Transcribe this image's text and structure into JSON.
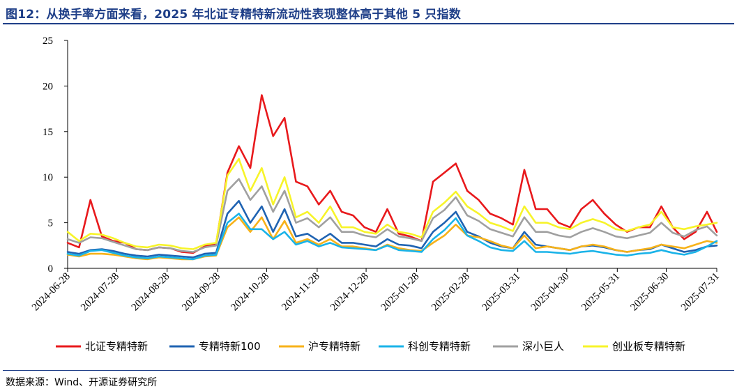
{
  "title": "图12：从换手率方面来看，2025 年北证专精特新流动性表现整体高于其他 5 只指数",
  "source": "数据来源：Wind、开源证券研究所",
  "chart_data": {
    "type": "line",
    "title": "图12：从换手率方面来看，2025 年北证专精特新流动性表现整体高于其他 5 只指数",
    "xlabel": "",
    "ylabel": "",
    "ylim": [
      0,
      25
    ],
    "yticks": [
      "0",
      "5",
      "10",
      "15",
      "20",
      "25"
    ],
    "x_tick_labels": [
      "2024-06-28",
      "2024-07-28",
      "2024-08-28",
      "2024-09-28",
      "2024-10-28",
      "2024-11-28",
      "2024-12-28",
      "2025-01-28",
      "2025-02-28",
      "2025-03-31",
      "2025-04-30",
      "2025-05-31",
      "2025-06-30",
      "2025-07-31"
    ],
    "grid": false,
    "legend_position": "bottom",
    "x": [
      "2024-06-28",
      "2024-07-05",
      "2024-07-12",
      "2024-07-19",
      "2024-07-26",
      "2024-08-02",
      "2024-08-09",
      "2024-08-16",
      "2024-08-23",
      "2024-08-30",
      "2024-09-06",
      "2024-09-13",
      "2024-09-20",
      "2024-09-27",
      "2024-10-04",
      "2024-10-11",
      "2024-10-18",
      "2024-10-25",
      "2024-11-01",
      "2024-11-08",
      "2024-11-15",
      "2024-11-22",
      "2024-11-29",
      "2024-12-06",
      "2024-12-13",
      "2024-12-20",
      "2024-12-27",
      "2025-01-03",
      "2025-01-10",
      "2025-01-17",
      "2025-01-24",
      "2025-01-31",
      "2025-02-07",
      "2025-02-14",
      "2025-02-21",
      "2025-02-28",
      "2025-03-07",
      "2025-03-14",
      "2025-03-21",
      "2025-03-28",
      "2025-04-04",
      "2025-04-11",
      "2025-04-18",
      "2025-04-25",
      "2025-05-02",
      "2025-05-09",
      "2025-05-16",
      "2025-05-23",
      "2025-05-30",
      "2025-06-06",
      "2025-06-13",
      "2025-06-20",
      "2025-06-27",
      "2025-07-04",
      "2025-07-11",
      "2025-07-18",
      "2025-07-25",
      "2025-07-31"
    ],
    "series": [
      {
        "name": "北证专精特新",
        "color": "#e8191c",
        "values": [
          2.8,
          2.3,
          7.5,
          3.5,
          3.0,
          2.8,
          2.1,
          2.0,
          2.3,
          2.2,
          1.8,
          1.7,
          2.4,
          2.7,
          10.5,
          13.4,
          11.0,
          19.0,
          14.5,
          16.5,
          9.5,
          9.0,
          7.0,
          8.5,
          6.2,
          5.8,
          4.5,
          4.0,
          6.5,
          3.8,
          3.5,
          3.0,
          9.5,
          10.5,
          11.5,
          8.5,
          7.5,
          6.0,
          5.5,
          4.8,
          10.8,
          6.5,
          6.5,
          5.0,
          4.5,
          6.5,
          7.5,
          6.0,
          4.8,
          4.0,
          4.5,
          4.5,
          6.8,
          4.5,
          3.2,
          4.0,
          6.2,
          4.0
        ]
      },
      {
        "name": "专精特新100",
        "color": "#1f63b2",
        "values": [
          1.8,
          1.6,
          2.0,
          2.1,
          1.9,
          1.6,
          1.4,
          1.3,
          1.5,
          1.4,
          1.3,
          1.2,
          1.6,
          1.7,
          6.0,
          7.4,
          5.0,
          6.8,
          4.0,
          6.5,
          3.5,
          3.8,
          3.0,
          3.8,
          2.8,
          2.8,
          2.6,
          2.4,
          3.2,
          2.6,
          2.5,
          2.2,
          4.0,
          5.0,
          6.2,
          4.0,
          3.5,
          2.8,
          2.4,
          2.2,
          4.0,
          2.6,
          2.4,
          2.2,
          2.0,
          2.4,
          2.5,
          2.3,
          2.0,
          1.8,
          2.0,
          2.1,
          2.6,
          2.2,
          1.8,
          2.0,
          2.4,
          2.5
        ]
      },
      {
        "name": "沪专精特新",
        "color": "#f7b219",
        "values": [
          1.5,
          1.3,
          1.6,
          1.6,
          1.5,
          1.3,
          1.1,
          1.0,
          1.2,
          1.1,
          1.0,
          1.0,
          1.3,
          1.4,
          4.5,
          5.6,
          4.0,
          5.6,
          3.2,
          5.2,
          2.8,
          3.2,
          2.6,
          3.2,
          2.4,
          2.4,
          2.2,
          2.0,
          2.6,
          2.2,
          2.0,
          1.9,
          2.8,
          3.6,
          4.8,
          3.6,
          3.4,
          3.0,
          2.5,
          2.2,
          3.6,
          2.2,
          2.4,
          2.2,
          2.0,
          2.4,
          2.6,
          2.4,
          2.0,
          1.8,
          2.0,
          2.2,
          2.6,
          2.4,
          2.2,
          2.6,
          3.0,
          2.8
        ]
      },
      {
        "name": "科创专精特新",
        "color": "#1ab3e8",
        "values": [
          1.6,
          1.4,
          1.9,
          2.0,
          1.7,
          1.4,
          1.2,
          1.1,
          1.3,
          1.2,
          1.1,
          1.0,
          1.4,
          1.5,
          5.0,
          6.0,
          4.3,
          4.3,
          3.2,
          4.0,
          2.6,
          3.0,
          2.4,
          2.8,
          2.3,
          2.2,
          2.1,
          2.0,
          2.5,
          2.0,
          1.9,
          1.8,
          3.2,
          4.2,
          5.5,
          3.6,
          3.0,
          2.3,
          2.0,
          1.9,
          3.0,
          1.8,
          1.8,
          1.7,
          1.6,
          1.8,
          1.9,
          1.7,
          1.5,
          1.4,
          1.6,
          1.7,
          2.0,
          1.7,
          1.5,
          1.8,
          2.4,
          3.0
        ]
      },
      {
        "name": "深小巨人",
        "color": "#a0a0a0",
        "values": [
          3.2,
          2.8,
          3.4,
          3.3,
          2.9,
          2.5,
          2.1,
          2.0,
          2.3,
          2.2,
          1.9,
          1.8,
          2.3,
          2.5,
          8.5,
          9.8,
          7.5,
          9.0,
          6.2,
          8.5,
          5.0,
          5.5,
          4.5,
          5.6,
          4.0,
          4.0,
          3.6,
          3.4,
          4.3,
          3.5,
          3.3,
          3.0,
          5.5,
          6.4,
          7.8,
          5.8,
          5.2,
          4.3,
          3.9,
          3.5,
          5.6,
          4.0,
          4.0,
          3.6,
          3.4,
          4.0,
          4.4,
          4.0,
          3.5,
          3.3,
          3.6,
          3.9,
          5.0,
          3.9,
          3.5,
          4.2,
          4.6,
          3.6
        ]
      },
      {
        "name": "创业板专精特新",
        "color": "#f7f42a",
        "values": [
          4.0,
          3.0,
          3.8,
          3.7,
          3.3,
          2.8,
          2.4,
          2.3,
          2.6,
          2.5,
          2.2,
          2.1,
          2.6,
          2.8,
          10.2,
          12.0,
          8.5,
          11.0,
          7.0,
          10.0,
          5.6,
          6.2,
          5.0,
          6.8,
          4.5,
          4.5,
          4.0,
          3.8,
          4.8,
          4.0,
          3.8,
          3.4,
          6.2,
          7.2,
          8.4,
          6.8,
          6.0,
          5.0,
          4.6,
          4.1,
          6.8,
          5.0,
          5.0,
          4.5,
          4.3,
          5.0,
          5.4,
          5.0,
          4.3,
          4.1,
          4.5,
          4.8,
          6.2,
          4.5,
          4.3,
          4.6,
          4.8,
          5.0
        ]
      }
    ]
  }
}
